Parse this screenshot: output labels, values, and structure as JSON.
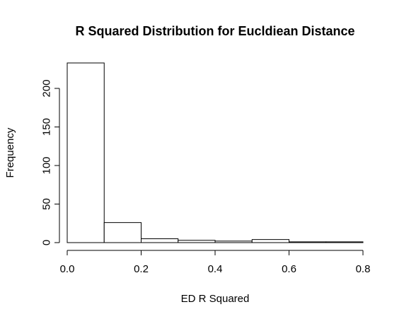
{
  "chart_data": {
    "type": "bar",
    "title": "R Squared Distribution for Eucldiean Distance",
    "xlabel": "ED R Squared",
    "ylabel": "Frequency",
    "bin_edges": [
      0.0,
      0.1,
      0.2,
      0.3,
      0.4,
      0.5,
      0.6,
      0.7,
      0.8
    ],
    "values": [
      233,
      26,
      5,
      3,
      2,
      4,
      1,
      1
    ],
    "xlim": [
      0.0,
      0.8
    ],
    "ylim": [
      0,
      233
    ],
    "x_ticks": [
      0.0,
      0.2,
      0.4,
      0.6,
      0.8
    ],
    "x_tick_labels": [
      "0.0",
      "0.2",
      "0.4",
      "0.6",
      "0.8"
    ],
    "y_ticks": [
      0,
      50,
      100,
      150,
      200
    ],
    "y_tick_labels": [
      "0",
      "50",
      "100",
      "150",
      "200"
    ],
    "grid": false,
    "legend": "none"
  }
}
